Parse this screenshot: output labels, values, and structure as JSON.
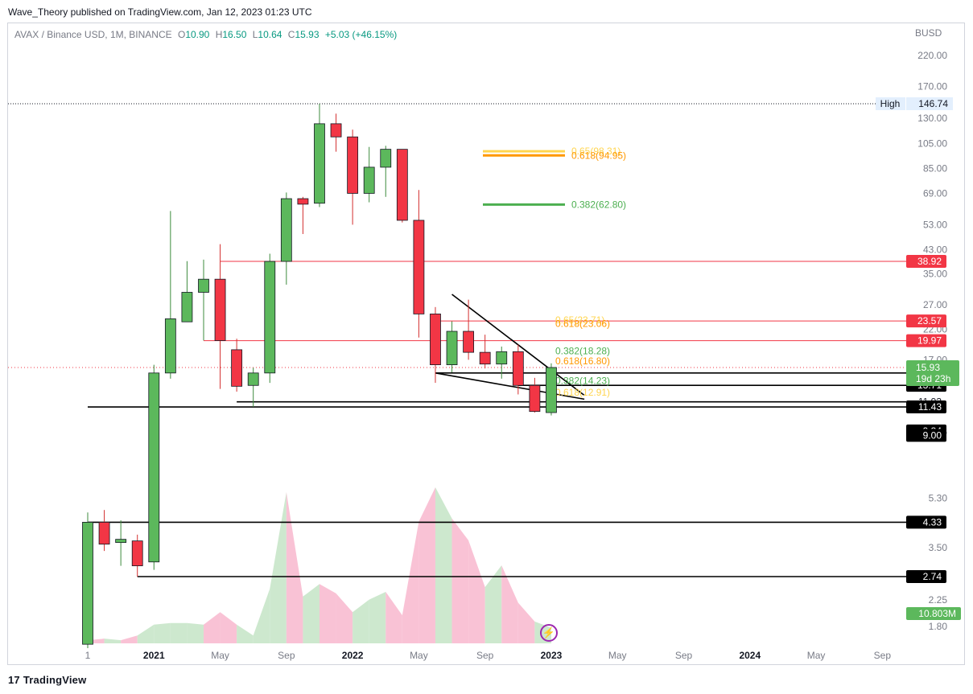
{
  "header": {
    "publisher": "Wave_Theory published on TradingView.com, Jan 12, 2023 01:23 UTC"
  },
  "legend": {
    "symbol": "AVAX / Binance USD, 1M, BINANCE",
    "open_label": "O",
    "open": "10.90",
    "high_label": "H",
    "high": "16.50",
    "low_label": "L",
    "low": "10.64",
    "close_label": "C",
    "close": "15.93",
    "change": "+5.03 (+46.15%)"
  },
  "currency": "BUSD",
  "footer": {
    "brand": "TradingView",
    "logo": "17"
  },
  "icons": {
    "lightning": "lightning-icon",
    "logo": "tradingview-logo"
  },
  "colors": {
    "up": "#089981",
    "up_fill": "#5cb85c",
    "down": "#f23645",
    "fib_gold": "#f5a623",
    "fib_orange": "#ff9800",
    "fib_green": "#4caf50",
    "vol_up": "#c8e6c9",
    "vol_down": "#f8bbd0"
  },
  "chart_data": {
    "type": "candlestick",
    "scale": "log",
    "ylim": [
      1.6,
      250
    ],
    "y_ticks": [
      "220.00",
      "170.00",
      "130.00",
      "105.00",
      "85.00",
      "69.00",
      "53.00",
      "43.00",
      "35.00",
      "27.00",
      "22.00",
      "17.00",
      "9.26",
      "5.30",
      "3.50",
      "2.25",
      "1.80"
    ],
    "x_ticks": [
      {
        "label": "1",
        "i": 0
      },
      {
        "label": "2021",
        "i": 4
      },
      {
        "label": "May",
        "i": 8
      },
      {
        "label": "Sep",
        "i": 12
      },
      {
        "label": "2022",
        "i": 16
      },
      {
        "label": "May",
        "i": 20
      },
      {
        "label": "Sep",
        "i": 24
      },
      {
        "label": "2023",
        "i": 28
      },
      {
        "label": "May",
        "i": 32
      },
      {
        "label": "Sep",
        "i": 36
      },
      {
        "label": "2024",
        "i": 40
      },
      {
        "label": "May",
        "i": 44
      },
      {
        "label": "Sep",
        "i": 48
      }
    ],
    "candles": [
      {
        "o": 1.55,
        "h": 4.7,
        "l": 1.5,
        "c": 4.33
      },
      {
        "o": 4.33,
        "h": 4.8,
        "l": 3.4,
        "c": 3.6
      },
      {
        "o": 3.65,
        "h": 4.4,
        "l": 3.0,
        "c": 3.75
      },
      {
        "o": 3.7,
        "h": 3.9,
        "l": 2.74,
        "c": 3.0
      },
      {
        "o": 3.1,
        "h": 16.3,
        "l": 2.9,
        "c": 15.21
      },
      {
        "o": 15.21,
        "h": 59.5,
        "l": 14.5,
        "c": 24.0
      },
      {
        "o": 23.4,
        "h": 39.0,
        "l": 23.4,
        "c": 30.0
      },
      {
        "o": 30.0,
        "h": 39.5,
        "l": 20.0,
        "c": 33.5
      },
      {
        "o": 33.5,
        "h": 45.0,
        "l": 13.3,
        "c": 19.97
      },
      {
        "o": 18.5,
        "h": 20.3,
        "l": 13.0,
        "c": 13.6
      },
      {
        "o": 13.7,
        "h": 15.9,
        "l": 11.43,
        "c": 15.21
      },
      {
        "o": 15.21,
        "h": 41.5,
        "l": 14.0,
        "c": 38.92
      },
      {
        "o": 38.92,
        "h": 69.5,
        "l": 32.0,
        "c": 66.0
      },
      {
        "o": 66.0,
        "h": 67.0,
        "l": 49.0,
        "c": 63.0
      },
      {
        "o": 63.5,
        "h": 146.74,
        "l": 61.5,
        "c": 124.0
      },
      {
        "o": 124.0,
        "h": 135.0,
        "l": 98.0,
        "c": 111.0
      },
      {
        "o": 111.0,
        "h": 118.0,
        "l": 53.0,
        "c": 69.0
      },
      {
        "o": 69.0,
        "h": 102.0,
        "l": 64.0,
        "c": 86.0
      },
      {
        "o": 86.0,
        "h": 103.0,
        "l": 67.0,
        "c": 100.0
      },
      {
        "o": 100.0,
        "h": 100.0,
        "l": 54.0,
        "c": 55.0
      },
      {
        "o": 55.0,
        "h": 71.0,
        "l": 20.5,
        "c": 25.0
      },
      {
        "o": 25.0,
        "h": 26.5,
        "l": 14.0,
        "c": 16.3
      },
      {
        "o": 16.3,
        "h": 23.5,
        "l": 15.3,
        "c": 21.6
      },
      {
        "o": 21.6,
        "h": 28.2,
        "l": 17.0,
        "c": 18.1
      },
      {
        "o": 18.1,
        "h": 21.0,
        "l": 15.8,
        "c": 16.4
      },
      {
        "o": 16.4,
        "h": 19.0,
        "l": 14.5,
        "c": 18.2
      },
      {
        "o": 18.2,
        "h": 19.3,
        "l": 12.7,
        "c": 13.7
      },
      {
        "o": 13.7,
        "h": 14.6,
        "l": 10.9,
        "c": 11.0
      },
      {
        "o": 10.9,
        "h": 16.5,
        "l": 10.64,
        "c": 15.93
      }
    ],
    "volume_series": {
      "values": [
        0.02,
        0.03,
        0.02,
        0.05,
        0.12,
        0.13,
        0.13,
        0.12,
        0.2,
        0.12,
        0.05,
        0.35,
        0.97,
        0.3,
        0.38,
        0.32,
        0.2,
        0.28,
        0.33,
        0.18,
        0.78,
        1.0,
        0.8,
        0.66,
        0.36,
        0.5,
        0.26,
        0.14,
        0.1
      ],
      "unit": "relative"
    },
    "volume_label": "10.803M",
    "price_lines": [
      {
        "price": 38.92,
        "label": "38.92",
        "color": "#f23645",
        "start_i": 8,
        "label_bg": "#f23645"
      },
      {
        "price": 23.57,
        "label": "23.57",
        "color": "#f23645",
        "start_i": 21,
        "label_bg": "#f23645"
      },
      {
        "price": 19.97,
        "label": "19.97",
        "color": "#f23645",
        "start_i": 7,
        "label_bg": "#f23645"
      },
      {
        "price": 15.21,
        "label": "15.21",
        "color": "#000000",
        "start_i": 21,
        "label_bg": "none"
      },
      {
        "price": 13.71,
        "label": "13.71",
        "color": "#000000",
        "start_i": 26,
        "label_bg": "#000000"
      },
      {
        "price": 11.93,
        "label": "11.93",
        "color": "#000000",
        "start_i": 9,
        "label_bg": "none"
      },
      {
        "price": 11.43,
        "label": "11.43",
        "color": "#000000",
        "start_i": 0,
        "label_bg": "#000000"
      },
      {
        "price": 9.34,
        "label": "9.34",
        "color": "#000000",
        "start_i": null,
        "label_bg": "#000000"
      },
      {
        "price": 9.0,
        "label": "9.00",
        "color": "#000000",
        "start_i": null,
        "label_bg": "#000000"
      },
      {
        "price": 4.33,
        "label": "4.33",
        "color": "#000000",
        "start_i": 0,
        "label_bg": "#000000"
      },
      {
        "price": 2.74,
        "label": "2.74",
        "color": "#000000",
        "start_i": 3,
        "label_bg": "#000000"
      }
    ],
    "fib_levels": [
      {
        "price": 98.31,
        "label": "0.65(98.31)",
        "color": "#ffd54f"
      },
      {
        "price": 94.95,
        "label": "0.618(94.95)",
        "color": "#ff9800"
      },
      {
        "price": 62.8,
        "label": "0.382(62.80)",
        "color": "#4caf50"
      },
      {
        "price": 23.71,
        "label": "0.65(23.71)",
        "color": "#ffd54f"
      },
      {
        "price": 23.06,
        "label": "0.618(23.06)",
        "color": "#ff9800"
      },
      {
        "price": 18.28,
        "label": "0.382(18.28)",
        "color": "#4caf50"
      },
      {
        "price": 16.8,
        "label": "0.618(16.80)",
        "color": "#ff9800"
      },
      {
        "price": 14.23,
        "label": "0.382(14.23)",
        "color": "#4caf50"
      },
      {
        "price": 12.91,
        "label": "0.618(12.91)",
        "color": "#ffd54f"
      }
    ],
    "wedge_lines": [
      {
        "from": {
          "i": 22,
          "price": 29.5
        },
        "to": {
          "i": 30,
          "price": 12.6
        }
      },
      {
        "from": {
          "i": 21,
          "price": 15.21
        },
        "to": {
          "i": 30,
          "price": 12.2
        }
      }
    ],
    "high_marker": {
      "label": "High",
      "value": "146.74"
    },
    "last_price": {
      "value": "15.93",
      "countdown": "19d 23h"
    },
    "grid": false,
    "legend_position": "top-left"
  }
}
